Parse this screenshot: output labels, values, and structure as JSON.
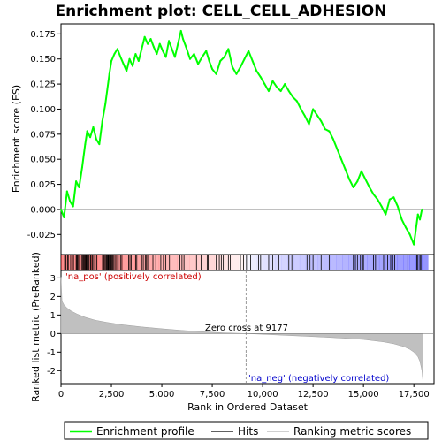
{
  "chart_data": {
    "type": "line",
    "title": "Enrichment plot: CELL_CELL_ADHESION",
    "top_panel": {
      "ylabel": "Enrichment score (ES)",
      "ylim": [
        -0.045,
        0.185
      ],
      "yticks": [
        -0.025,
        0.0,
        0.025,
        0.05,
        0.075,
        0.1,
        0.125,
        0.15,
        0.175
      ],
      "ytick_labels": [
        "-0.025",
        "0.000",
        "0.025",
        "0.050",
        "0.075",
        "0.100",
        "0.125",
        "0.150",
        "0.175"
      ],
      "series": [
        {
          "name": "Enrichment profile",
          "color": "#00ff00",
          "x": [
            0,
            150,
            300,
            450,
            600,
            750,
            900,
            1050,
            1200,
            1300,
            1450,
            1600,
            1750,
            1900,
            2050,
            2200,
            2300,
            2400,
            2500,
            2650,
            2800,
            2950,
            3100,
            3250,
            3400,
            3550,
            3700,
            3850,
            4000,
            4150,
            4300,
            4450,
            4600,
            4750,
            4900,
            5050,
            5200,
            5350,
            5500,
            5650,
            5800,
            5950,
            6050,
            6200,
            6400,
            6600,
            6800,
            7000,
            7200,
            7350,
            7500,
            7700,
            7900,
            8100,
            8300,
            8500,
            8700,
            8900,
            9100,
            9300,
            9500,
            9700,
            9900,
            10100,
            10300,
            10500,
            10700,
            10900,
            11100,
            11300,
            11500,
            11700,
            11900,
            12100,
            12300,
            12500,
            12700,
            12900,
            13100,
            13300,
            13500,
            13700,
            13900,
            14100,
            14300,
            14500,
            14700,
            14900,
            15100,
            15300,
            15500,
            15700,
            15900,
            16100,
            16300,
            16500,
            16700,
            16900,
            17100,
            17300,
            17500,
            17600,
            17700,
            17800,
            17900
          ],
          "y": [
            0.0,
            -0.008,
            0.018,
            0.008,
            0.003,
            0.028,
            0.022,
            0.042,
            0.065,
            0.078,
            0.072,
            0.082,
            0.07,
            0.065,
            0.088,
            0.105,
            0.12,
            0.135,
            0.148,
            0.155,
            0.16,
            0.152,
            0.145,
            0.138,
            0.15,
            0.143,
            0.155,
            0.148,
            0.16,
            0.172,
            0.165,
            0.17,
            0.162,
            0.155,
            0.165,
            0.158,
            0.152,
            0.168,
            0.16,
            0.152,
            0.165,
            0.178,
            0.17,
            0.162,
            0.15,
            0.155,
            0.145,
            0.152,
            0.158,
            0.148,
            0.14,
            0.135,
            0.148,
            0.152,
            0.16,
            0.142,
            0.135,
            0.142,
            0.15,
            0.158,
            0.148,
            0.138,
            0.132,
            0.125,
            0.118,
            0.128,
            0.122,
            0.118,
            0.125,
            0.118,
            0.112,
            0.108,
            0.1,
            0.093,
            0.085,
            0.1,
            0.094,
            0.088,
            0.08,
            0.078,
            0.07,
            0.06,
            0.05,
            0.04,
            0.03,
            0.022,
            0.028,
            0.038,
            0.03,
            0.022,
            0.015,
            0.01,
            0.003,
            -0.005,
            0.01,
            0.012,
            0.003,
            -0.01,
            -0.018,
            -0.025,
            -0.035,
            -0.02,
            -0.005,
            -0.01,
            0.0
          ]
        }
      ]
    },
    "hits_panel": {
      "series_name": "Hits",
      "hit_positions": [
        180,
        210,
        240,
        320,
        360,
        480,
        560,
        620,
        750,
        790,
        830,
        880,
        940,
        1020,
        1080,
        1120,
        1150,
        1190,
        1230,
        1260,
        1300,
        1330,
        1380,
        1450,
        1490,
        1560,
        1620,
        1700,
        1780,
        2060,
        2120,
        2180,
        2230,
        2260,
        2300,
        2330,
        2360,
        2400,
        2450,
        2480,
        2520,
        2560,
        2620,
        2680,
        2760,
        2840,
        2950,
        3020,
        3350,
        3420,
        3480,
        3700,
        3760,
        4000,
        4080,
        4180,
        4240,
        4300,
        4560,
        4700,
        4950,
        5080,
        5200,
        5380,
        5460,
        5900,
        6000,
        6100,
        6600,
        6720,
        6950,
        7250,
        7300,
        7700,
        7850,
        7950,
        8050,
        8300,
        8400,
        8900,
        9050,
        9200,
        9400,
        9800,
        9900,
        10300,
        10500,
        10800,
        11300,
        11450,
        12200,
        12350,
        12500,
        12900,
        13300,
        14500,
        14600,
        14700,
        14850,
        14950,
        15000,
        15500,
        15600,
        16000,
        16200,
        16350,
        16450,
        16550,
        17200,
        17650,
        17700,
        17800,
        17850
      ],
      "colorbar_positive": "#ff0000",
      "colorbar_negative": "#0000ff"
    },
    "metric_panel": {
      "series_name": "Ranking metric scores",
      "ylabel": "Ranked list metric (PreRanked)",
      "xlabel": "Rank in Ordered Dataset",
      "ylim": [
        -2.7,
        3.4
      ],
      "yticks": [
        -2,
        -1,
        0,
        1,
        2,
        3
      ],
      "xlim": [
        0,
        18500
      ],
      "xticks": [
        0,
        2500,
        5000,
        7500,
        10000,
        12500,
        15000,
        17500
      ],
      "xtick_labels": [
        "0",
        "2,500",
        "5,000",
        "7,500",
        "10,000",
        "12,500",
        "15,000",
        "17,500"
      ],
      "metric_x": [
        0,
        50,
        150,
        300,
        500,
        800,
        1200,
        1700,
        2300,
        3000,
        4000,
        5000,
        6000,
        7000,
        8000,
        9177,
        10000,
        11000,
        12000,
        13000,
        14000,
        15000,
        16000,
        16500,
        17000,
        17300,
        17500,
        17700,
        17800,
        17900,
        17950
      ],
      "metric_y": [
        3.05,
        1.75,
        1.55,
        1.38,
        1.22,
        1.05,
        0.88,
        0.72,
        0.6,
        0.48,
        0.36,
        0.26,
        0.17,
        0.1,
        0.04,
        0.0,
        -0.04,
        -0.09,
        -0.14,
        -0.19,
        -0.25,
        -0.32,
        -0.45,
        -0.55,
        -0.7,
        -0.85,
        -1.0,
        -1.25,
        -1.5,
        -2.0,
        -2.6
      ],
      "zero_cross_label": "Zero cross at 9177",
      "zero_cross": 9177,
      "pos_label": "'na_pos' (positively correlated)",
      "neg_label": "'na_neg' (negatively correlated)",
      "pos_color": "#cc0000",
      "neg_color": "#0000cc"
    },
    "legend": {
      "placement": "bottom",
      "items": [
        {
          "label": "Enrichment profile",
          "color": "#00ff00",
          "kind": "line"
        },
        {
          "label": "Hits",
          "color": "#000000",
          "kind": "line"
        },
        {
          "label": "Ranking metric scores",
          "color": "#c0c0c0",
          "kind": "line"
        }
      ]
    }
  }
}
